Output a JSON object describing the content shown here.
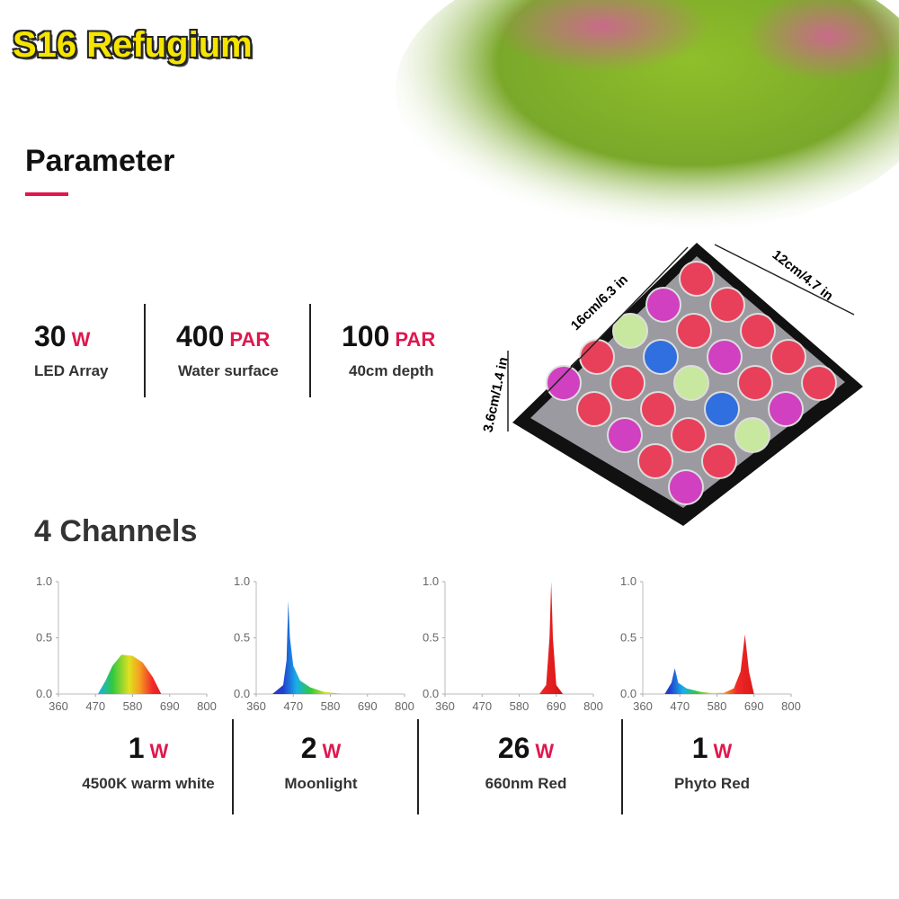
{
  "header": {
    "title": "S16 Refugium"
  },
  "parameter": {
    "title": "Parameter"
  },
  "specs": [
    {
      "value": "30",
      "unit": "W",
      "label": "LED Array"
    },
    {
      "value": "400",
      "unit": "PAR",
      "label": "Water surface"
    },
    {
      "value": "100",
      "unit": "PAR",
      "label": "40cm depth"
    }
  ],
  "dimensions": {
    "width": "12cm/4.7 in",
    "length": "16cm/6.3 in",
    "height": "3.6cm/1.4 in"
  },
  "channels_title": "4 Channels",
  "spectrum_axes": {
    "xlim": [
      360,
      800
    ],
    "xticks": [
      360,
      470,
      580,
      690,
      800
    ],
    "ylim": [
      0,
      1
    ],
    "yticks": [
      {
        "value": 0,
        "label": "0.0"
      },
      0.5,
      {
        "value": 1,
        "label": "1.0"
      }
    ]
  },
  "channels": [
    {
      "watts": "1",
      "unit": "W",
      "label": "4500K warm white",
      "chart_data": {
        "type": "area",
        "x": [
          477,
          500,
          520,
          547,
          580,
          610,
          640,
          665
        ],
        "values": [
          0,
          0.12,
          0.25,
          0.35,
          0.34,
          0.28,
          0.15,
          0
        ]
      }
    },
    {
      "watts": "2",
      "unit": "W",
      "label": "Moonlight",
      "chart_data": {
        "type": "area",
        "x": [
          408,
          440,
          450,
          455,
          460,
          470,
          490,
          520,
          560,
          615
        ],
        "values": [
          0,
          0.08,
          0.3,
          0.83,
          0.5,
          0.25,
          0.12,
          0.06,
          0.02,
          0
        ]
      }
    },
    {
      "watts": "26",
      "unit": "W",
      "label": "660nm Red",
      "chart_data": {
        "type": "area",
        "x": [
          640,
          660,
          670,
          675,
          680,
          690,
          710
        ],
        "values": [
          0,
          0.08,
          0.5,
          1.0,
          0.5,
          0.08,
          0
        ]
      }
    },
    {
      "watts": "1",
      "unit": "W",
      "label": "Phyto Red",
      "chart_data": {
        "type": "area",
        "x": [
          425,
          445,
          455,
          465,
          490,
          530,
          560,
          600,
          630,
          650,
          663,
          675,
          690
        ],
        "values": [
          0,
          0.1,
          0.23,
          0.1,
          0.05,
          0.02,
          0.01,
          0.01,
          0.05,
          0.2,
          0.53,
          0.2,
          0
        ]
      }
    }
  ]
}
